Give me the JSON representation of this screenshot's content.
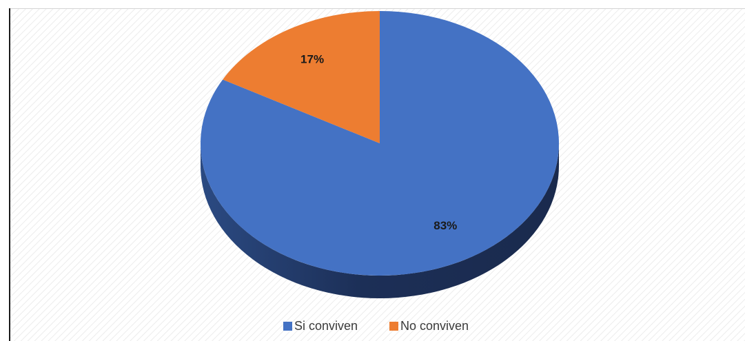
{
  "chart_data": {
    "type": "pie",
    "style": "3d",
    "categories": [
      "Si conviven",
      "No conviven"
    ],
    "values": [
      83,
      17
    ],
    "data_labels": [
      "83%",
      "17%"
    ],
    "colors": [
      "#4472c4",
      "#ed7d31"
    ],
    "legend_position": "bottom",
    "title": ""
  }
}
